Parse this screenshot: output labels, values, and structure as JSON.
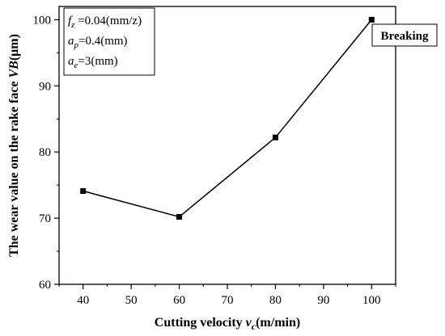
{
  "chart_data": {
    "type": "line",
    "xlabel": {
      "prefix": "Cutting velocity ",
      "var": "v",
      "sub": "c",
      "suffix": "(m/min)"
    },
    "ylabel": {
      "prefix": "The wear value on the rake face ",
      "var": "VB",
      "suffix": "(μm)"
    },
    "xlim": [
      35,
      105
    ],
    "ylim": [
      60,
      102
    ],
    "x_ticks": [
      40,
      50,
      60,
      70,
      80,
      90,
      100
    ],
    "y_ticks": [
      60,
      70,
      80,
      90,
      100
    ],
    "x_tick_labels": [
      "40",
      "50",
      "60",
      "70",
      "80",
      "90",
      "100"
    ],
    "y_tick_labels": [
      "60",
      "70",
      "80",
      "90",
      "100"
    ],
    "series": [
      {
        "color": "#000000",
        "marker": "square",
        "points": [
          {
            "x": 40,
            "y": 74.1
          },
          {
            "x": 60,
            "y": 70.2
          },
          {
            "x": 80,
            "y": 82.2
          },
          {
            "x": 100,
            "y": 100.0
          }
        ]
      }
    ],
    "conditions": [
      {
        "var": "f",
        "sub": "z",
        "text": " =0.04(mm/z)"
      },
      {
        "var": "a",
        "sub": "p",
        "text": "=0.4(mm)"
      },
      {
        "var": "a",
        "sub": "e",
        "text": "=3(mm)"
      }
    ],
    "annotation": {
      "text": "Breaking",
      "at_x": 100,
      "at_y": 100
    },
    "grid": false,
    "legend": "top-left"
  }
}
